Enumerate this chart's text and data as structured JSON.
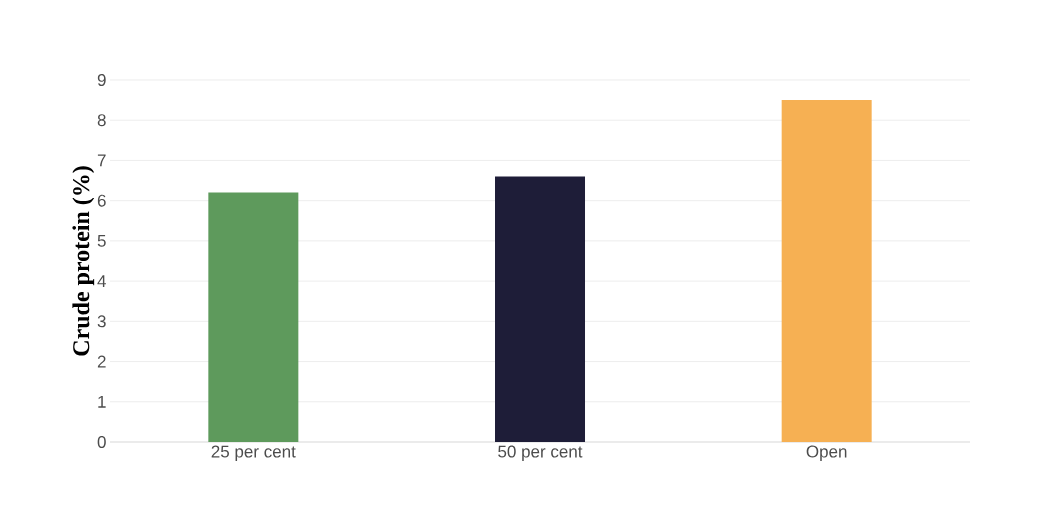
{
  "chart_data": {
    "type": "bar",
    "ylabel": "Crude protein (%)",
    "categories": [
      "25 per cent",
      "50 per cent",
      "Open"
    ],
    "values": [
      6.2,
      6.6,
      8.5
    ],
    "colors": [
      "#5e9a5c",
      "#1e1d38",
      "#f6b053"
    ],
    "ylim": [
      0,
      9
    ],
    "yticks": [
      0,
      1,
      2,
      3,
      4,
      5,
      6,
      7,
      8,
      9
    ],
    "grid": "y"
  }
}
